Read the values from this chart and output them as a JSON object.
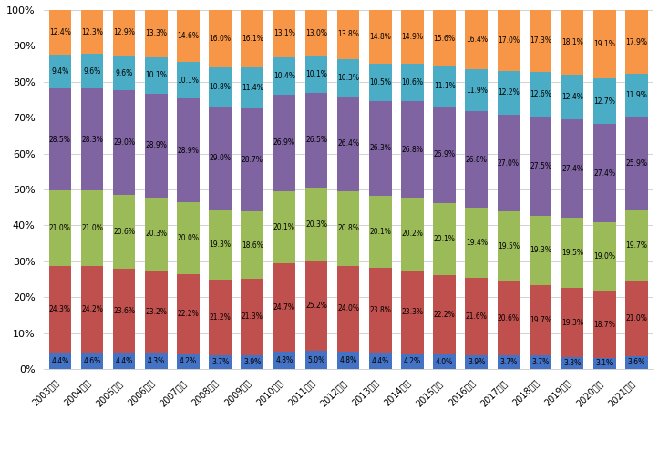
{
  "years": [
    "2003年卒",
    "2004年卒",
    "2005年卒",
    "2006年卒",
    "2007年卒",
    "2008年卒",
    "2009年卒",
    "2010年卒",
    "2011年卒",
    "2012年卒",
    "2013年卒",
    "2014年卒",
    "2015年卒",
    "2016年卒",
    "2017年卒",
    "2018年卒",
    "2019年卒",
    "2020年卒",
    "2021年卒"
  ],
  "series": {
    "5人未満": [
      4.4,
      4.6,
      4.4,
      4.3,
      4.2,
      3.7,
      3.9,
      4.8,
      5.0,
      4.8,
      4.4,
      4.2,
      4.0,
      3.9,
      3.7,
      3.7,
      3.3,
      3.1,
      3.6
    ],
    "5〜29人": [
      24.3,
      24.2,
      23.6,
      23.2,
      22.2,
      21.2,
      21.3,
      24.7,
      25.2,
      24.0,
      23.8,
      23.3,
      22.2,
      21.6,
      20.6,
      19.7,
      19.3,
      18.7,
      21.0
    ],
    "30〜99人": [
      21.0,
      21.0,
      20.6,
      20.3,
      20.0,
      19.3,
      18.6,
      20.1,
      20.3,
      20.8,
      20.1,
      20.2,
      20.1,
      19.4,
      19.5,
      19.3,
      19.5,
      19.0,
      19.7
    ],
    "100〜499人": [
      28.5,
      28.3,
      29.0,
      28.9,
      28.9,
      29.0,
      28.7,
      26.9,
      26.5,
      26.4,
      26.3,
      26.8,
      26.9,
      26.8,
      27.0,
      27.5,
      27.4,
      27.4,
      25.9
    ],
    "500〜999人": [
      9.4,
      9.6,
      9.6,
      10.1,
      10.1,
      10.8,
      11.4,
      10.4,
      10.1,
      10.3,
      10.5,
      10.6,
      11.1,
      11.9,
      12.2,
      12.6,
      12.4,
      12.7,
      11.9
    ],
    "1,000人以上": [
      12.4,
      12.3,
      12.9,
      13.3,
      14.6,
      16.0,
      16.1,
      13.1,
      13.0,
      13.8,
      14.8,
      14.9,
      15.6,
      16.4,
      17.0,
      17.3,
      18.1,
      19.1,
      17.9
    ]
  },
  "colors": {
    "5人未満": "#4472C4",
    "5〜29人": "#C0504D",
    "30〜99人": "#9BBB59",
    "100〜499人": "#8064A2",
    "500〜999人": "#4BACC6",
    "1,000人以上": "#F79646"
  },
  "yticks": [
    0,
    10,
    20,
    30,
    40,
    50,
    60,
    70,
    80,
    90,
    100
  ],
  "figsize": [
    7.23,
    4.94
  ],
  "dpi": 100,
  "bar_width": 0.7,
  "label_fontsize": 5.5
}
